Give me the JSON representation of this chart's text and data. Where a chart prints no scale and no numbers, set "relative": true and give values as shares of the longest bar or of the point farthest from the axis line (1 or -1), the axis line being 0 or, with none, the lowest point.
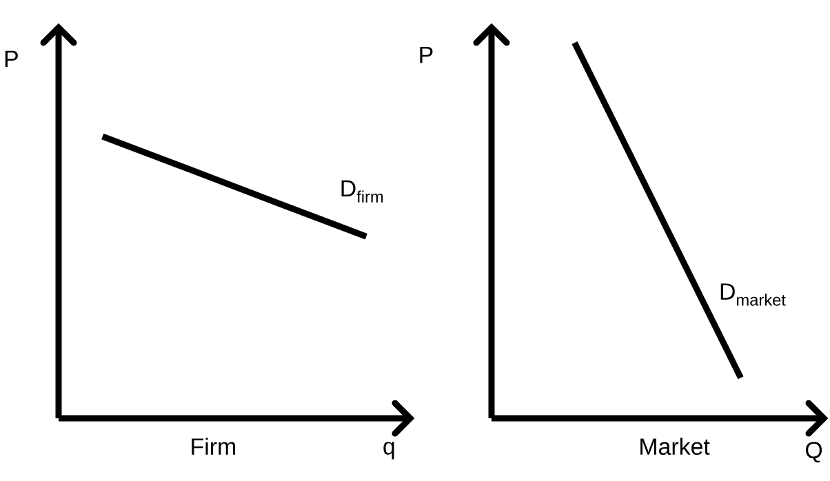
{
  "chart_data": [
    {
      "type": "line",
      "title": "Firm",
      "xlabel": "q",
      "ylabel": "P",
      "relative": true,
      "categories": [
        null,
        null,
        null,
        null
      ],
      "series": [
        {
          "name": "D$_{firm}$",
          "color": "#000000",
          "values": [
            1,
            0.882,
            0.763,
            0.645
          ]
        }
      ]
    },
    {
      "type": "line",
      "title": "Market",
      "xlabel": "Q",
      "ylabel": "P",
      "relative": true,
      "categories": [
        null,
        null
      ],
      "series": [
        {
          "name": "D$_{market}$",
          "color": "#000000",
          "values": [
            1,
            0.108
          ]
        }
      ]
    }
  ]
}
